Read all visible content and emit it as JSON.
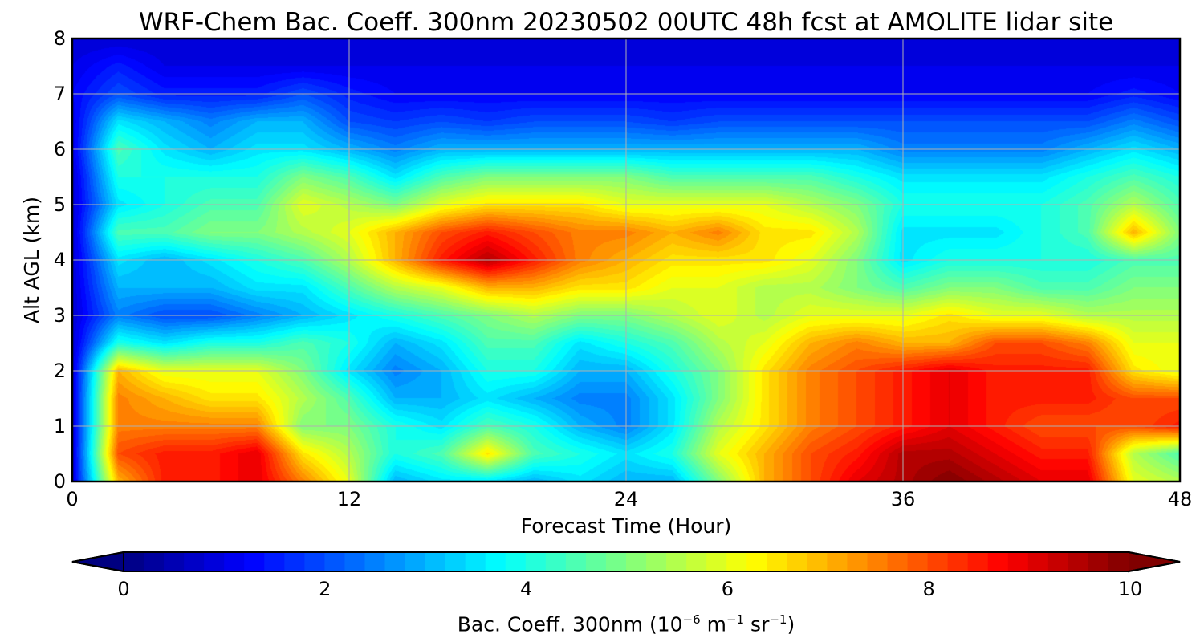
{
  "chart_data": {
    "type": "heatmap",
    "title": "WRF-Chem Bac. Coeff. 300nm  20230502 00UTC 48h fcst at AMOLITE lidar site",
    "xlabel": "Forecast Time (Hour)",
    "ylabel": "Alt AGL (km)",
    "xlim": [
      0,
      48
    ],
    "ylim": [
      0,
      8
    ],
    "xticks": [
      "0",
      "12",
      "24",
      "36",
      "48"
    ],
    "yticks": [
      "0",
      "1",
      "2",
      "3",
      "4",
      "5",
      "6",
      "7",
      "8"
    ],
    "grid": true,
    "colormap": "jet",
    "colorbar": {
      "label": "Bac. Coeff. 300nm  (10",
      "label_exp1": "−6",
      "label_mid": " m",
      "label_exp2": "−1",
      "label_mid2": " sr",
      "label_exp3": "−1",
      "label_end": ")",
      "range": [
        0,
        10
      ],
      "ticks": [
        "0",
        "2",
        "4",
        "6",
        "8",
        "10"
      ],
      "extend": "both"
    },
    "x": [
      0,
      2,
      4,
      6,
      8,
      10,
      12,
      14,
      16,
      18,
      20,
      22,
      24,
      26,
      28,
      30,
      32,
      34,
      36,
      38,
      40,
      42,
      44,
      46,
      48
    ],
    "y": [
      0,
      0.5,
      1,
      1.5,
      2,
      2.5,
      3,
      3.5,
      4,
      4.5,
      5,
      5.5,
      6,
      6.5,
      7,
      7.5,
      8
    ],
    "z": [
      [
        0.8,
        7.0,
        8.5,
        8.5,
        9.0,
        7.5,
        6.0,
        3.0,
        3.5,
        3.5,
        3.0,
        3.5,
        3.0,
        3.0,
        5.0,
        7.0,
        8.0,
        9.0,
        9.5,
        10.0,
        9.5,
        9.0,
        9.0,
        6.0,
        5.5
      ],
      [
        0.8,
        8.0,
        8.5,
        8.5,
        9.0,
        6.5,
        5.5,
        4.0,
        4.5,
        6.5,
        4.5,
        4.0,
        3.5,
        4.0,
        6.0,
        7.0,
        8.0,
        8.5,
        9.5,
        9.5,
        9.0,
        8.5,
        8.5,
        5.5,
        4.5
      ],
      [
        0.8,
        7.5,
        7.5,
        7.5,
        7.5,
        5.0,
        5.0,
        4.0,
        3.5,
        4.5,
        4.0,
        3.0,
        2.5,
        3.5,
        5.5,
        6.5,
        7.5,
        8.0,
        8.5,
        9.0,
        8.5,
        8.0,
        8.0,
        8.0,
        8.5
      ],
      [
        0.8,
        7.5,
        7.0,
        6.5,
        6.5,
        5.5,
        4.5,
        3.0,
        3.0,
        3.5,
        3.0,
        2.5,
        2.5,
        3.5,
        5.0,
        6.5,
        7.5,
        8.0,
        8.5,
        9.0,
        8.5,
        8.5,
        8.5,
        8.0,
        8.0
      ],
      [
        0.8,
        7.0,
        6.0,
        6.0,
        6.0,
        5.0,
        3.5,
        2.5,
        3.0,
        4.0,
        4.0,
        3.0,
        3.0,
        4.0,
        5.0,
        6.5,
        7.5,
        8.0,
        8.5,
        9.0,
        8.5,
        8.5,
        8.5,
        6.5,
        6.0
      ],
      [
        0.8,
        4.0,
        3.5,
        4.0,
        4.0,
        4.5,
        4.0,
        3.0,
        3.5,
        4.5,
        4.5,
        3.5,
        4.0,
        4.5,
        5.5,
        6.0,
        7.0,
        7.5,
        7.0,
        7.0,
        8.0,
        8.0,
        7.5,
        6.0,
        6.0
      ],
      [
        0.8,
        2.5,
        2.0,
        2.0,
        2.5,
        3.0,
        3.5,
        4.0,
        4.5,
        5.0,
        5.5,
        5.0,
        5.0,
        5.5,
        6.0,
        5.5,
        6.0,
        6.0,
        6.0,
        6.5,
        6.0,
        6.0,
        5.5,
        5.5,
        5.5
      ],
      [
        0.8,
        3.0,
        3.0,
        3.0,
        3.5,
        3.5,
        4.5,
        5.5,
        6.0,
        7.0,
        7.0,
        6.5,
        6.5,
        6.0,
        6.0,
        5.5,
        5.5,
        5.0,
        4.5,
        5.0,
        5.0,
        4.5,
        4.5,
        5.0,
        5.0
      ],
      [
        0.8,
        3.5,
        3.0,
        3.5,
        4.0,
        4.5,
        5.5,
        7.0,
        8.5,
        9.5,
        8.5,
        7.5,
        7.0,
        6.5,
        6.5,
        6.5,
        6.0,
        5.0,
        3.5,
        4.0,
        4.0,
        4.0,
        4.0,
        4.5,
        4.5
      ],
      [
        0.8,
        4.5,
        4.5,
        5.0,
        5.0,
        5.5,
        6.0,
        7.0,
        8.0,
        8.5,
        8.0,
        7.5,
        7.5,
        7.0,
        7.5,
        6.5,
        6.5,
        5.5,
        3.5,
        3.5,
        3.5,
        4.0,
        4.5,
        7.0,
        5.0
      ],
      [
        0.8,
        3.5,
        4.0,
        4.5,
        4.5,
        6.0,
        5.5,
        5.0,
        6.0,
        6.5,
        6.5,
        6.5,
        6.0,
        6.0,
        6.0,
        6.0,
        5.5,
        5.0,
        4.0,
        4.0,
        4.0,
        4.0,
        4.5,
        5.5,
        4.5
      ],
      [
        0.8,
        4.0,
        4.0,
        4.0,
        4.0,
        5.0,
        4.5,
        3.5,
        4.5,
        5.0,
        5.0,
        5.0,
        5.0,
        4.5,
        4.5,
        4.5,
        4.5,
        4.0,
        3.5,
        3.5,
        3.5,
        3.5,
        4.0,
        4.5,
        4.0
      ],
      [
        1.0,
        4.5,
        3.5,
        3.0,
        3.5,
        3.5,
        3.0,
        2.5,
        3.0,
        3.0,
        3.0,
        3.0,
        3.0,
        3.0,
        3.0,
        3.0,
        3.0,
        3.0,
        2.5,
        2.5,
        2.5,
        2.5,
        3.0,
        3.5,
        3.0
      ],
      [
        1.0,
        3.5,
        3.0,
        2.5,
        3.0,
        3.0,
        2.0,
        1.8,
        2.0,
        1.8,
        2.0,
        2.0,
        2.0,
        1.8,
        2.0,
        2.0,
        2.0,
        2.0,
        2.0,
        2.0,
        2.0,
        2.0,
        2.0,
        2.5,
        2.0
      ],
      [
        1.2,
        2.0,
        1.5,
        1.5,
        1.5,
        2.0,
        1.5,
        1.2,
        1.2,
        1.2,
        1.2,
        1.2,
        1.2,
        1.2,
        1.2,
        1.2,
        1.2,
        1.2,
        1.2,
        1.2,
        1.2,
        1.2,
        1.2,
        1.5,
        1.2
      ],
      [
        1.0,
        1.5,
        1.0,
        1.0,
        1.0,
        1.0,
        1.0,
        1.0,
        1.0,
        1.0,
        1.0,
        1.0,
        1.0,
        1.0,
        1.0,
        1.0,
        1.0,
        1.0,
        1.0,
        1.0,
        1.0,
        1.0,
        1.0,
        1.0,
        1.0
      ],
      [
        0.8,
        0.8,
        0.8,
        0.8,
        0.8,
        0.8,
        0.8,
        0.8,
        0.8,
        0.8,
        0.8,
        0.8,
        0.8,
        0.8,
        0.8,
        0.8,
        0.8,
        0.8,
        0.8,
        0.8,
        0.8,
        0.8,
        0.8,
        0.8,
        0.8
      ]
    ]
  }
}
